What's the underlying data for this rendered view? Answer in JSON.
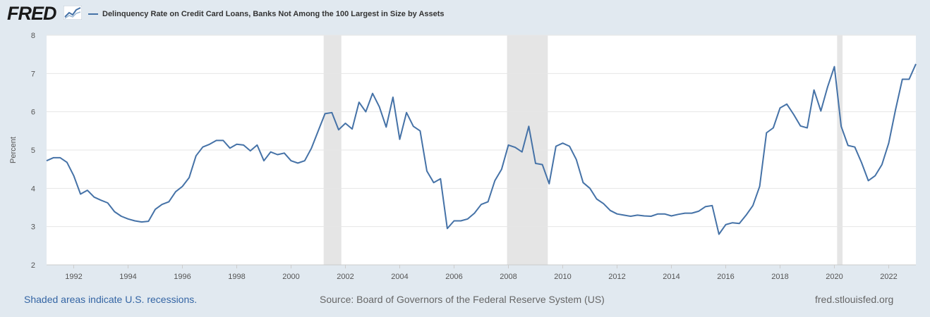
{
  "header": {
    "logo_text": "FRED",
    "logo_icon": "chart-line-icon"
  },
  "colors": {
    "series": "#4572a7",
    "recession": "#e5e5e5",
    "background": "#e1e9f0",
    "plot": "#ffffff",
    "link": "#3465a4"
  },
  "footer": {
    "recession_note": "Shaded areas indicate U.S. recessions.",
    "source": "Source: Board of Governors of the Federal Reserve System (US)",
    "site": "fred.stlouisfed.org"
  },
  "chart_data": {
    "type": "line",
    "title": "",
    "xlabel": "",
    "ylabel": "Percent",
    "ylim": [
      2,
      8
    ],
    "xlim": [
      1991.0,
      2023.0
    ],
    "yticks": [
      2,
      3,
      4,
      5,
      6,
      7,
      8
    ],
    "xticks": [
      1992,
      1994,
      1996,
      1998,
      2000,
      2002,
      2004,
      2006,
      2008,
      2010,
      2012,
      2014,
      2016,
      2018,
      2020,
      2022
    ],
    "grid": true,
    "legend": "top-left",
    "recessions": [
      [
        2001.2,
        2001.85
      ],
      [
        2007.95,
        2009.45
      ],
      [
        2020.1,
        2020.3
      ]
    ],
    "series": [
      {
        "name": "Delinquency Rate on Credit Card Loans, Banks Not Among the 100 Largest in Size by Assets",
        "x": [
          1991.0,
          1991.25,
          1991.5,
          1991.75,
          1992.0,
          1992.25,
          1992.5,
          1992.75,
          1993.0,
          1993.25,
          1993.5,
          1993.75,
          1994.0,
          1994.25,
          1994.5,
          1994.75,
          1995.0,
          1995.25,
          1995.5,
          1995.75,
          1996.0,
          1996.25,
          1996.5,
          1996.75,
          1997.0,
          1997.25,
          1997.5,
          1997.75,
          1998.0,
          1998.25,
          1998.5,
          1998.75,
          1999.0,
          1999.25,
          1999.5,
          1999.75,
          2000.0,
          2000.25,
          2000.5,
          2000.75,
          2001.0,
          2001.25,
          2001.5,
          2001.75,
          2002.0,
          2002.25,
          2002.5,
          2002.75,
          2003.0,
          2003.25,
          2003.5,
          2003.75,
          2004.0,
          2004.25,
          2004.5,
          2004.75,
          2005.0,
          2005.25,
          2005.5,
          2005.75,
          2006.0,
          2006.25,
          2006.5,
          2006.75,
          2007.0,
          2007.25,
          2007.5,
          2007.75,
          2008.0,
          2008.25,
          2008.5,
          2008.75,
          2009.0,
          2009.25,
          2009.5,
          2009.75,
          2010.0,
          2010.25,
          2010.5,
          2010.75,
          2011.0,
          2011.25,
          2011.5,
          2011.75,
          2012.0,
          2012.25,
          2012.5,
          2012.75,
          2013.0,
          2013.25,
          2013.5,
          2013.75,
          2014.0,
          2014.25,
          2014.5,
          2014.75,
          2015.0,
          2015.25,
          2015.5,
          2015.75,
          2016.0,
          2016.25,
          2016.5,
          2016.75,
          2017.0,
          2017.25,
          2017.5,
          2017.75,
          2018.0,
          2018.25,
          2018.5,
          2018.75,
          2019.0,
          2019.25,
          2019.5,
          2019.75,
          2020.0,
          2020.25,
          2020.5,
          2020.75,
          2021.0,
          2021.25,
          2021.5,
          2021.75,
          2022.0,
          2022.25,
          2022.5,
          2022.75,
          2023.0
        ],
        "values": [
          4.72,
          4.8,
          4.8,
          4.68,
          4.33,
          3.85,
          3.95,
          3.77,
          3.69,
          3.62,
          3.39,
          3.27,
          3.2,
          3.15,
          3.12,
          3.14,
          3.45,
          3.58,
          3.65,
          3.91,
          4.05,
          4.28,
          4.85,
          5.08,
          5.15,
          5.25,
          5.25,
          5.05,
          5.15,
          5.13,
          4.98,
          5.13,
          4.72,
          4.95,
          4.88,
          4.92,
          4.72,
          4.66,
          4.72,
          5.05,
          5.5,
          5.95,
          5.98,
          5.53,
          5.7,
          5.55,
          6.25,
          6.0,
          6.48,
          6.13,
          5.6,
          6.38,
          5.28,
          5.98,
          5.62,
          5.5,
          4.45,
          4.15,
          4.25,
          2.95,
          3.15,
          3.15,
          3.2,
          3.35,
          3.58,
          3.65,
          4.2,
          4.5,
          5.13,
          5.07,
          4.95,
          5.62,
          4.65,
          4.62,
          4.12,
          5.1,
          5.18,
          5.1,
          4.75,
          4.15,
          4.0,
          3.72,
          3.6,
          3.42,
          3.33,
          3.3,
          3.27,
          3.3,
          3.28,
          3.27,
          3.33,
          3.33,
          3.28,
          3.32,
          3.35,
          3.35,
          3.4,
          3.52,
          3.55,
          2.8,
          3.05,
          3.1,
          3.08,
          3.3,
          3.55,
          4.05,
          5.45,
          5.58,
          6.1,
          6.2,
          5.93,
          5.63,
          5.58,
          6.57,
          6.02,
          6.65,
          7.18,
          5.62,
          5.12,
          5.08,
          4.67,
          4.2,
          4.33,
          4.62,
          5.18,
          6.05,
          6.85,
          6.85,
          7.25
        ]
      }
    ]
  }
}
